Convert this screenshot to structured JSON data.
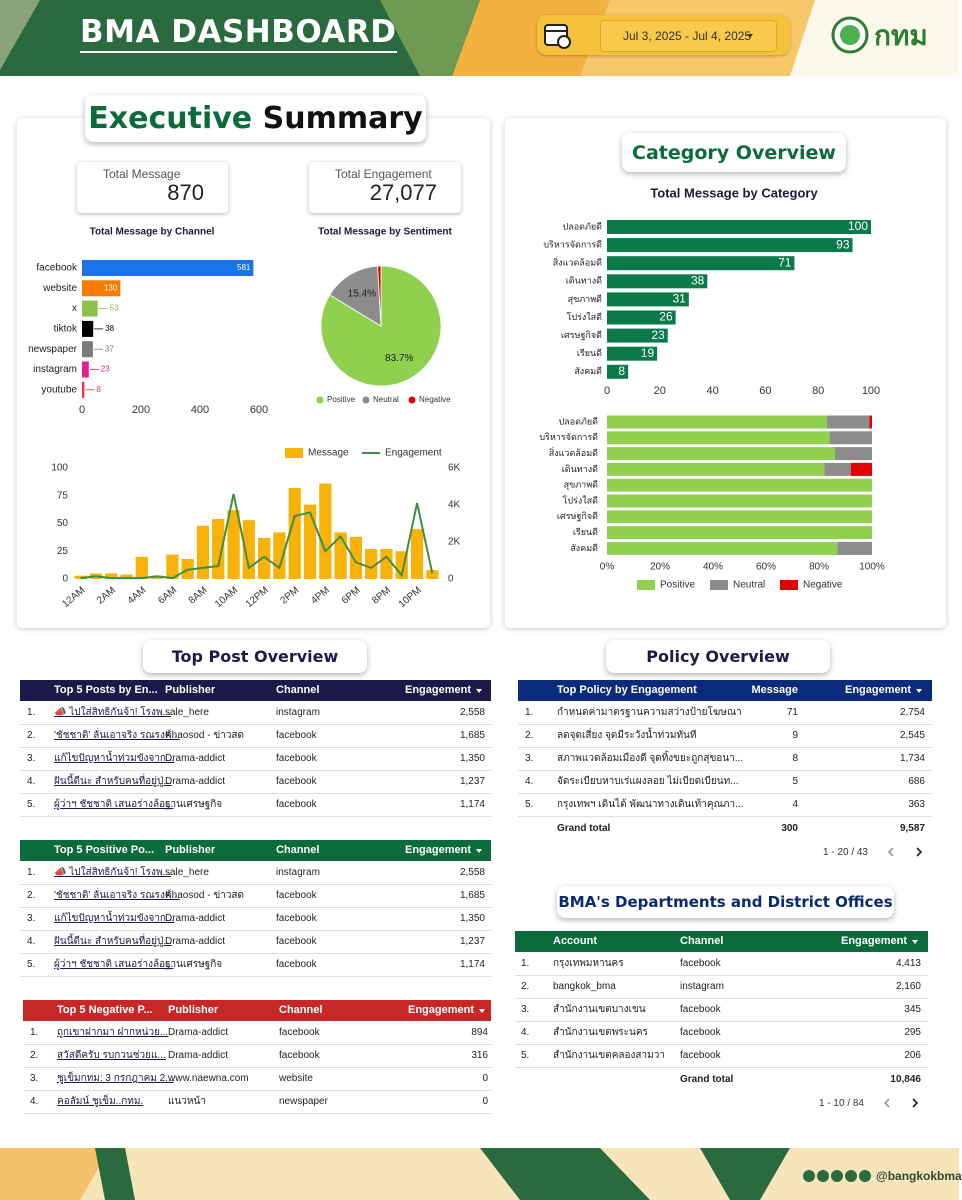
{
  "header": {
    "title": "BMA DASHBOARD",
    "date_range": "Jul 3, 2025 - Jul 4, 2025",
    "logo_text": "กทม"
  },
  "executive_summary": {
    "title": [
      "Executive",
      "Summary"
    ],
    "kpis": [
      {
        "label": "Total Message",
        "value": "870"
      },
      {
        "label": "Total Engagement",
        "value": "27,077"
      }
    ]
  },
  "category_overview": {
    "title": "Category Overview"
  },
  "chart_data": [
    {
      "type": "hbar",
      "title": "Total Message by Channel",
      "categories": [
        "facebook",
        "website",
        "x",
        "tiktok",
        "newspaper",
        "instagram",
        "youtube"
      ],
      "values": [
        581,
        130,
        53,
        38,
        37,
        23,
        8
      ],
      "colors": [
        "#1a73e8",
        "#f57c00",
        "#8bc34a",
        "#000000",
        "#7a7a7a",
        "#e91e8c",
        "#e53935"
      ],
      "xlim": [
        0,
        600
      ],
      "xticks": [
        0,
        200,
        400,
        600
      ]
    },
    {
      "type": "pie",
      "title": "Total Message by Sentiment",
      "categories": [
        "Positive",
        "Neutral",
        "Negative"
      ],
      "values": [
        83.7,
        15.4,
        0.9
      ],
      "value_labels": [
        "83.7%",
        "15.4%",
        null
      ],
      "colors": [
        "#8fd14f",
        "#8c8c8c",
        "#e00000"
      ],
      "legend": "bottom"
    },
    {
      "type": "combo",
      "categories": [
        "12AM",
        null,
        "2AM",
        null,
        "4AM",
        null,
        "6AM",
        null,
        "8AM",
        null,
        "10AM",
        null,
        "12PM",
        null,
        "2PM",
        null,
        "4PM",
        null,
        "6PM",
        null,
        "8PM",
        null,
        "10PM",
        null
      ],
      "series": [
        {
          "name": "Message",
          "type": "bar",
          "color": "#f9b208",
          "values": [
            3,
            5,
            5,
            4,
            20,
            3,
            22,
            18,
            48,
            54,
            62,
            53,
            37,
            42,
            82,
            67,
            86,
            42,
            38,
            27,
            27,
            25,
            45,
            8
          ]
        },
        {
          "name": "Engagement",
          "type": "line",
          "color": "#3e8e41",
          "axis": "y2",
          "values": [
            50,
            150,
            50,
            50,
            50,
            150,
            50,
            500,
            600,
            700,
            4600,
            600,
            1200,
            600,
            3400,
            3600,
            1500,
            2300,
            900,
            600,
            1200,
            200,
            4100,
            300
          ]
        }
      ],
      "ylim": [
        0,
        100
      ],
      "yticks": [
        0,
        25,
        50,
        75,
        100
      ],
      "y2lim": [
        0,
        6000
      ],
      "y2ticks": [
        0,
        {
          "value": 2000,
          "label": "2K"
        },
        {
          "value": 4000,
          "label": "4K"
        },
        {
          "value": 6000,
          "label": "6K"
        }
      ],
      "legend": "top-right"
    },
    {
      "type": "hbar",
      "title": "Total Message by Category",
      "categories": [
        "ปลอดภัยดี",
        "บริหารจัดการดี",
        "สิ่งแวดล้อมดี",
        "เดินทางดี",
        "สุขภาพดี",
        "โปร่งใสดี",
        "เศรษฐกิจดี",
        "เรียนดี",
        "สังคมดี"
      ],
      "values": [
        100,
        93,
        71,
        38,
        31,
        26,
        23,
        19,
        8
      ],
      "color": "#0b7a4b",
      "xlim": [
        0,
        100
      ],
      "xticks": [
        0,
        20,
        40,
        60,
        80,
        100
      ]
    },
    {
      "type": "stacked-hbar",
      "categories": [
        "ปลอดภัยดี",
        "บริหารจัดการดี",
        "สิ่งแวดล้อมดี",
        "เดินทางดี",
        "สุขภาพดี",
        "โปร่งใสดี",
        "เศรษฐกิจดี",
        "เรียนดี",
        "สังคมดี"
      ],
      "series": [
        {
          "name": "Positive",
          "color": "#8fd14f",
          "values": [
            83,
            84,
            86,
            82,
            100,
            100,
            100,
            100,
            87
          ]
        },
        {
          "name": "Neutral",
          "color": "#8c8c8c",
          "values": [
            16,
            16,
            14,
            10,
            0,
            0,
            0,
            0,
            13
          ]
        },
        {
          "name": "Negative",
          "color": "#e00000",
          "values": [
            1,
            0,
            0,
            8,
            0,
            0,
            0,
            0,
            0
          ]
        }
      ],
      "xlim": [
        0,
        100
      ],
      "xticks": [
        {
          "value": 0,
          "label": "0%"
        },
        {
          "value": 20,
          "label": "20%"
        },
        {
          "value": 40,
          "label": "40%"
        },
        {
          "value": 60,
          "label": "60%"
        },
        {
          "value": 80,
          "label": "80%"
        },
        {
          "value": 100,
          "label": "100%"
        }
      ],
      "legend": "bottom"
    }
  ],
  "top_post_overview": {
    "title": "Top Post Overview",
    "tables": [
      {
        "columns": [
          "Top 5 Posts by En...",
          "Publisher",
          "Channel",
          "Engagement"
        ],
        "rows": [
          [
            "1.",
            "📣 ไปใส่สิทธิกันจ้า! โรงพ...",
            "sale_here",
            "instagram",
            "2,558"
          ],
          [
            "2.",
            "'ชัชชาติ' ลั่นเอาจริง รณรงค์...",
            "Khaosod - ข่าวสด",
            "facebook",
            "1,685"
          ],
          [
            "3.",
            "แก้ไขปัญหาน้ำท่วมขังจาก...",
            "Drama-addict",
            "facebook",
            "1,350"
          ],
          [
            "4.",
            "ฝันนี้ดีนะ สำหรับคนที่อยู่ปู่...",
            "Drama-addict",
            "facebook",
            "1,237"
          ],
          [
            "5.",
            "ผู้ว่าฯ ชัชชาติ เสนอร่างล้อ...",
            "ฐานเศรษฐกิจ",
            "facebook",
            "1,174"
          ]
        ]
      },
      {
        "columns": [
          "Top 5 Positive Po...",
          "Publisher",
          "Channel",
          "Engagement"
        ],
        "rows": [
          [
            "1.",
            "📣 ไปใส่สิทธิกันจ้า! โรงพ...",
            "sale_here",
            "instagram",
            "2,558"
          ],
          [
            "2.",
            "'ชัชชาติ' ลั่นเอาจริง รณรงค์...",
            "Khaosod - ข่าวสด",
            "facebook",
            "1,685"
          ],
          [
            "3.",
            "แก้ไขปัญหาน้ำท่วมขังจาก...",
            "Drama-addict",
            "facebook",
            "1,350"
          ],
          [
            "4.",
            "ฝันนี้ดีนะ สำหรับคนที่อยู่ปู่...",
            "Drama-addict",
            "facebook",
            "1,237"
          ],
          [
            "5.",
            "ผู้ว่าฯ ชัชชาติ เสนอร่างล้อ...",
            "ฐานเศรษฐกิจ",
            "facebook",
            "1,174"
          ]
        ]
      },
      {
        "columns": [
          "Top 5 Negative P...",
          "Publisher",
          "Channel",
          "Engagement"
        ],
        "rows": [
          [
            "1.",
            "ถูกเขาฝากมา ฝากหน่วย...",
            "Drama-addict",
            "facebook",
            "894"
          ],
          [
            "2.",
            "สวัสดีครับ รบกวนช่วยแ...",
            "Drama-addict",
            "facebook",
            "316"
          ],
          [
            "3.",
            "ชูเข็มกทม: 3 กรกฎาคม 2...",
            "www.naewna.com",
            "website",
            "0"
          ],
          [
            "4.",
            "คอลัมน์ ชูเข็ม..กทม.",
            "แนวหน้า",
            "newspaper",
            "0"
          ]
        ]
      }
    ]
  },
  "policy_overview": {
    "title": "Policy Overview",
    "columns": [
      "Top Policy by Engagement",
      "Message",
      "Engagement"
    ],
    "rows": [
      [
        "1.",
        "กำหนดค่ามาตรฐานความสว่างป้ายโฆษณา",
        "71",
        "2,754"
      ],
      [
        "2.",
        "ลดจุดเสี่ยง จุดมีระวังน้ำท่วมทันที",
        "9",
        "2,545"
      ],
      [
        "3.",
        "สภาพแวดล้อมเมืองดี จุดทิ้งขยะถูกสุขอนา...",
        "8",
        "1,734"
      ],
      [
        "4.",
        "จัดระเบียบหาบเร่แผงลอย ไม่เบียดเบียนท...",
        "5",
        "686"
      ],
      [
        "5.",
        "กรุงเทพฯ เดินได้ พัฒนาทางเดินเท้าคุณภา...",
        "4",
        "363"
      ]
    ],
    "grand_total": [
      "Grand total",
      "300",
      "9,587"
    ],
    "pagination": "1 - 20 / 43"
  },
  "departments": {
    "title": "BMA's Departments and District Offices",
    "columns": [
      "Account",
      "Channel",
      "Engagement"
    ],
    "rows": [
      [
        "1.",
        "กรุงเทพมหานคร",
        "facebook",
        "4,413"
      ],
      [
        "2.",
        "bangkok_bma",
        "instagram",
        "2,160"
      ],
      [
        "3.",
        "สำนักงานเขตบางเขน",
        "facebook",
        "345"
      ],
      [
        "4.",
        "สำนักงานเขตพระนคร",
        "facebook",
        "295"
      ],
      [
        "5.",
        "สำนักงานเขตคลองสามวา",
        "facebook",
        "206"
      ]
    ],
    "grand_total": [
      "Grand total",
      "10,846"
    ],
    "pagination": "1 - 10 / 84"
  },
  "footer": {
    "handle": "@bangkokbma"
  }
}
